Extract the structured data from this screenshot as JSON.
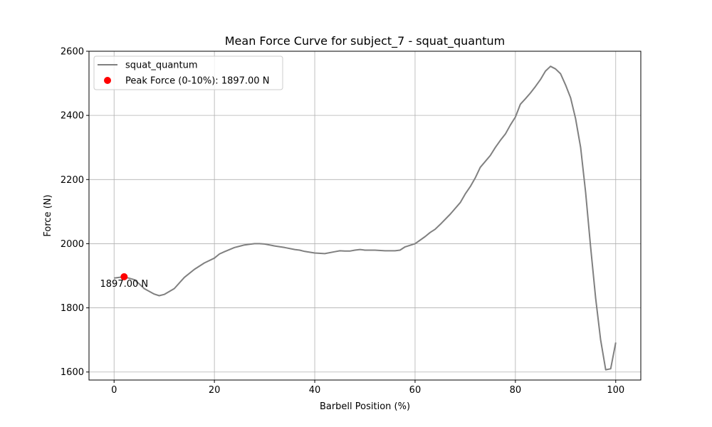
{
  "chart_data": {
    "type": "line",
    "title": "Mean Force Curve for subject_7 - squat_quantum",
    "xlabel": "Barbell Position (%)",
    "ylabel": "Force (N)",
    "xlim": [
      -5,
      105
    ],
    "ylim": [
      1575,
      2600
    ],
    "xticks": [
      0,
      20,
      40,
      60,
      80,
      100
    ],
    "yticks": [
      1600,
      1800,
      2000,
      2200,
      2400,
      2600
    ],
    "grid": true,
    "legend_position": "top-left",
    "series": [
      {
        "name": "squat_quantum",
        "color": "#808080",
        "x": [
          0,
          2,
          4,
          5,
          6,
          8,
          9,
          10,
          12,
          14,
          16,
          18,
          20,
          21,
          22,
          24,
          25,
          26,
          27,
          28,
          29,
          30,
          32,
          34,
          36,
          37,
          38,
          40,
          42,
          44,
          45,
          46,
          47,
          48,
          49,
          50,
          52,
          54,
          55,
          56,
          57,
          58,
          60,
          62,
          63,
          64,
          65,
          67,
          69,
          70,
          71,
          72,
          73,
          75,
          76,
          77,
          78,
          79,
          80,
          81,
          82,
          83,
          84,
          85,
          86,
          87,
          88,
          89,
          90,
          91,
          92,
          93,
          94,
          95,
          96,
          97,
          98,
          99,
          100
        ],
        "y": [
          1893,
          1897,
          1888,
          1875,
          1860,
          1843,
          1838,
          1842,
          1860,
          1895,
          1920,
          1940,
          1955,
          1968,
          1975,
          1988,
          1992,
          1996,
          1998,
          2000,
          2000,
          1999,
          1993,
          1988,
          1982,
          1980,
          1976,
          1971,
          1969,
          1975,
          1978,
          1977,
          1977,
          1980,
          1982,
          1980,
          1980,
          1978,
          1978,
          1978,
          1980,
          1990,
          2000,
          2022,
          2035,
          2045,
          2060,
          2092,
          2128,
          2155,
          2178,
          2205,
          2238,
          2275,
          2300,
          2322,
          2342,
          2370,
          2395,
          2435,
          2452,
          2470,
          2490,
          2512,
          2538,
          2553,
          2545,
          2530,
          2495,
          2455,
          2390,
          2300,
          2160,
          1990,
          1830,
          1700,
          1607,
          1610,
          1692
        ]
      }
    ],
    "peak": {
      "label": "Peak Force (0-10%): 1897.00 N",
      "x": 2,
      "y": 1897,
      "color": "#ff0000",
      "annotation": "1897.00 N"
    }
  }
}
